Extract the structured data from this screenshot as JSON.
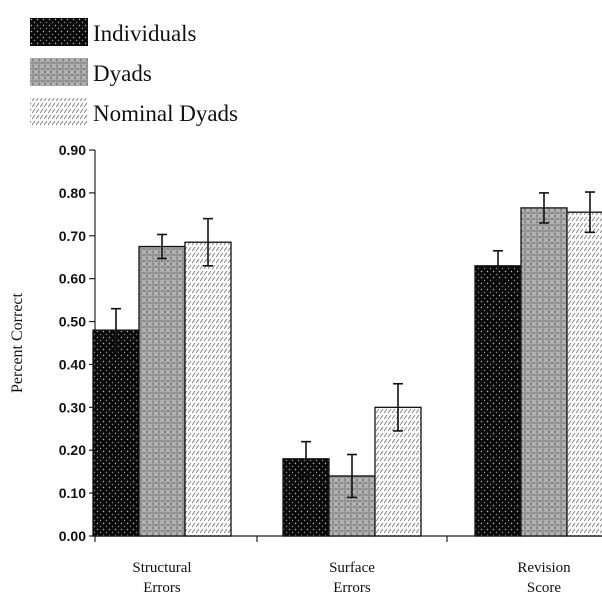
{
  "chart_data": {
    "type": "bar",
    "ylabel": "Percent Correct",
    "ylim": [
      0,
      0.9
    ],
    "yticks": [
      "0.00",
      "0.10",
      "0.20",
      "0.30",
      "0.40",
      "0.50",
      "0.60",
      "0.70",
      "0.80",
      "0.90"
    ],
    "categories": [
      [
        "Structural",
        "Errors"
      ],
      [
        "Surface",
        "Errors"
      ],
      [
        "Revision",
        "Score"
      ]
    ],
    "legend_position": "top-left",
    "series": [
      {
        "name": "Individuals",
        "pattern": "black-dots",
        "values": [
          0.48,
          0.18,
          0.63
        ],
        "error": [
          0.05,
          0.04,
          0.035
        ]
      },
      {
        "name": "Dyads",
        "pattern": "gray-crosshatch",
        "values": [
          0.675,
          0.14,
          0.765
        ],
        "error": [
          0.028,
          0.05,
          0.035
        ]
      },
      {
        "name": "Nominal Dyads",
        "pattern": "white-diagonal-dashes",
        "values": [
          0.685,
          0.3,
          0.755
        ],
        "error": [
          0.055,
          0.055,
          0.047
        ]
      }
    ]
  }
}
